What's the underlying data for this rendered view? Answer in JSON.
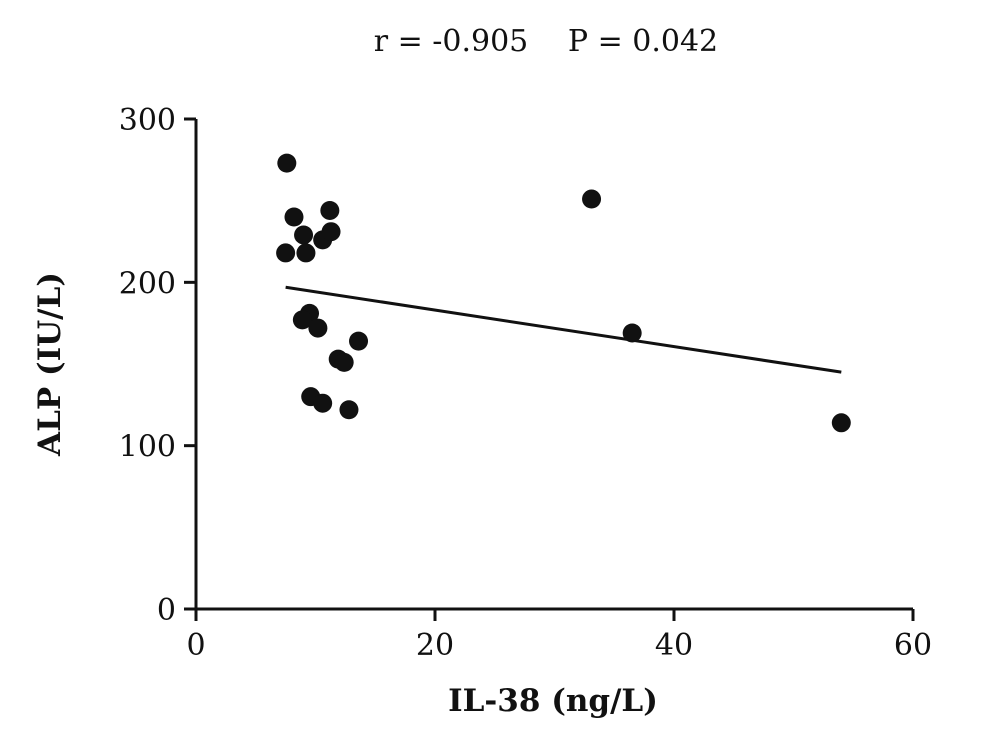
{
  "stats": {
    "r": "r = -0.905",
    "p": "P = 0.042"
  },
  "chart_data": {
    "type": "scatter",
    "title": "",
    "xlabel": "IL-38 (ng/L)",
    "ylabel": "ALP (IU/L)",
    "xlim": [
      0,
      60
    ],
    "ylim": [
      0,
      300
    ],
    "x_ticks": [
      0,
      20,
      40,
      60
    ],
    "y_ticks": [
      0,
      100,
      200,
      300
    ],
    "x_tick_labels": [
      "0",
      "20",
      "40",
      "60"
    ],
    "y_tick_labels": [
      "0",
      "100",
      "200",
      "300"
    ],
    "grid": false,
    "points": [
      {
        "x": 7.6,
        "y": 273
      },
      {
        "x": 8.2,
        "y": 240
      },
      {
        "x": 9.0,
        "y": 229
      },
      {
        "x": 7.5,
        "y": 218
      },
      {
        "x": 9.2,
        "y": 218
      },
      {
        "x": 11.2,
        "y": 244
      },
      {
        "x": 10.6,
        "y": 226
      },
      {
        "x": 11.3,
        "y": 231
      },
      {
        "x": 9.5,
        "y": 181
      },
      {
        "x": 8.9,
        "y": 177
      },
      {
        "x": 10.2,
        "y": 172
      },
      {
        "x": 13.6,
        "y": 164
      },
      {
        "x": 11.9,
        "y": 153
      },
      {
        "x": 12.4,
        "y": 151
      },
      {
        "x": 9.6,
        "y": 130
      },
      {
        "x": 10.6,
        "y": 126
      },
      {
        "x": 12.8,
        "y": 122
      },
      {
        "x": 33.1,
        "y": 251
      },
      {
        "x": 36.5,
        "y": 169
      },
      {
        "x": 54.0,
        "y": 114
      }
    ],
    "trendline": {
      "x": [
        7.5,
        54.0
      ],
      "y": [
        197,
        145
      ]
    },
    "colors": {
      "points": "#111111",
      "line": "#111111",
      "axes": "#111111"
    }
  }
}
